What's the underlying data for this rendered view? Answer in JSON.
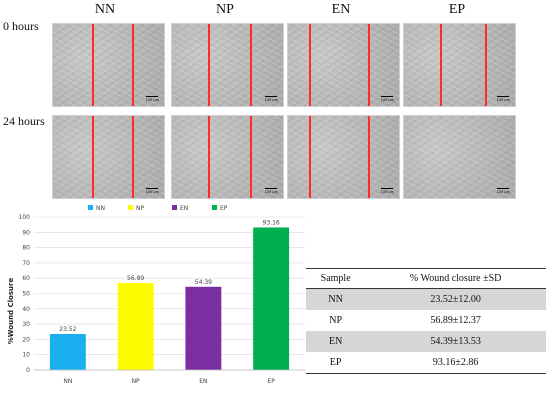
{
  "figure": {
    "columns": [
      "NN",
      "NP",
      "EN",
      "EP"
    ],
    "rows": [
      "0  hours",
      "24 hours"
    ],
    "scale_bar_label": "100 μm",
    "line_color": "#ff2a2a"
  },
  "chart_data": {
    "type": "bar",
    "categories": [
      "NN",
      "NP",
      "EN",
      "EP"
    ],
    "values": [
      23.52,
      56.89,
      54.39,
      93.16
    ],
    "data_labels": [
      "23.52",
      "56.89",
      "54.39",
      "93.16"
    ],
    "colors": [
      "#1ab0ef",
      "#fcfc00",
      "#7a2ea0",
      "#00b050"
    ],
    "legend": [
      "NN",
      "NP",
      "EN",
      "EP"
    ],
    "legend_position": "top",
    "ylabel": "%Wound Closure",
    "xlabel": "",
    "ylim": [
      0,
      100
    ],
    "yticks": [
      "0",
      "10",
      "20",
      "30",
      "40",
      "50",
      "60",
      "70",
      "80",
      "90",
      "100"
    ],
    "grid": true
  },
  "table": {
    "headers": [
      "Sample",
      "% Wound closure ±SD"
    ],
    "rows": [
      [
        "NN",
        "23.52±12.00"
      ],
      [
        "NP",
        "56.89±12.37"
      ],
      [
        "EN",
        "54.39±13.53"
      ],
      [
        "EP",
        "93.16±2.86"
      ]
    ]
  }
}
